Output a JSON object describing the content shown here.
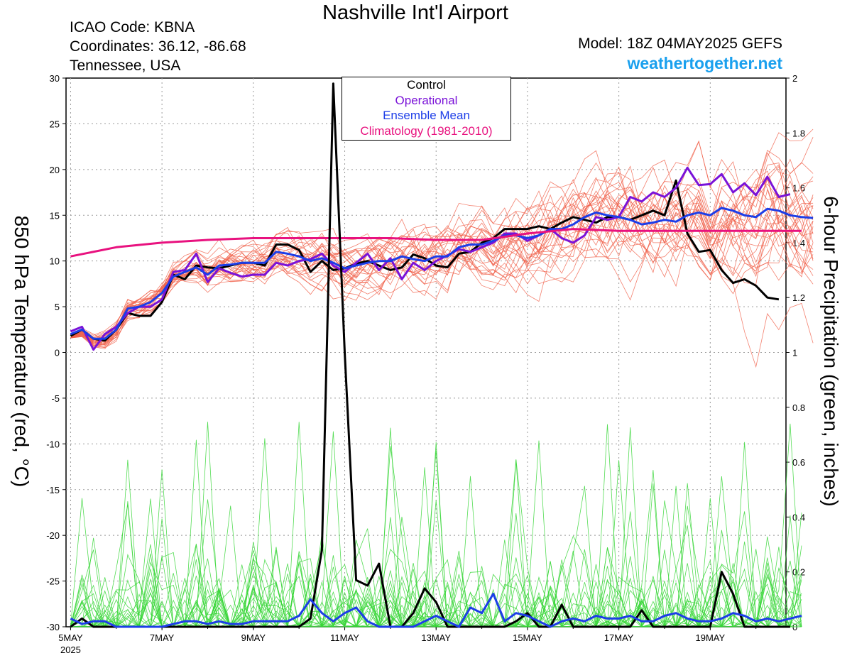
{
  "header": {
    "title": "Nashville Int'l Airport",
    "icao": "ICAO Code: KBNA",
    "coords": "Coordinates: 36.12, -86.68",
    "region": "Tennessee, USA",
    "model": "Model: 18Z 04MAY2025 GEFS",
    "site": "weathertogether.net"
  },
  "chart_data": {
    "type": "line",
    "title": "Nashville Int'l Airport",
    "ylabel_left": "850 hPa Temperature (red, °C)",
    "ylabel_right": "6-hour Precipitation (green, inches)",
    "ylim_left": [
      -30,
      30
    ],
    "ylim_right": [
      0,
      2
    ],
    "yticks_left": [
      "30",
      "25",
      "20",
      "15",
      "10",
      "5",
      "0",
      "-5",
      "-10",
      "-15",
      "-20",
      "-25",
      "-30"
    ],
    "yticks_right": [
      "2",
      "1.8",
      "1.6",
      "1.4",
      "1.2",
      "1",
      "0.8",
      "0.6",
      "0.4",
      "0.2",
      "0"
    ],
    "xticks": [
      {
        "label": "5MAY",
        "day": 5
      },
      {
        "label": "7MAY",
        "day": 7
      },
      {
        "label": "9MAY",
        "day": 9
      },
      {
        "label": "11MAY",
        "day": 11
      },
      {
        "label": "13MAY",
        "day": 13
      },
      {
        "label": "15MAY",
        "day": 15
      },
      {
        "label": "17MAY",
        "day": 17
      },
      {
        "label": "19MAY",
        "day": 19
      }
    ],
    "x_year_label": "2025",
    "grid": true,
    "legend": [
      {
        "label": "Control",
        "color": "#000000"
      },
      {
        "label": "Operational",
        "color": "#7a12d8"
      },
      {
        "label": "Ensemble Mean",
        "color": "#1c3de8"
      },
      {
        "label": "Climatology (1981-2010)",
        "color": "#e8127f"
      }
    ],
    "legend_position": "top-center",
    "x_start_day": 5.0,
    "x_step_days": 0.25,
    "series": [
      {
        "name": "Control",
        "axis": "temperature",
        "color": "#000000",
        "values": [
          1.8,
          2.5,
          1.5,
          1.3,
          2.5,
          4.3,
          4.0,
          4.0,
          5.5,
          8.5,
          8.0,
          9.5,
          9.3,
          9.2,
          9.5,
          9.8,
          9.8,
          9.5,
          11.8,
          11.8,
          11.2,
          8.8,
          10.0,
          9.0,
          9.2,
          9.7,
          10.0,
          9.5,
          9.0,
          9.3,
          10.7,
          10.3,
          9.5,
          9.3,
          10.8,
          11.0,
          12.0,
          12.5,
          13.5,
          13.5,
          13.5,
          13.8,
          13.5,
          14.2,
          14.8,
          14.5,
          14.2,
          14.8,
          14.8,
          14.5,
          15.0,
          15.5,
          15.0,
          18.8,
          13.0,
          11.0,
          11.2,
          9.0,
          7.6,
          8.0,
          7.3,
          6.0,
          5.8
        ]
      },
      {
        "name": "Operational",
        "axis": "temperature",
        "color": "#7a12d8",
        "values": [
          2.3,
          2.8,
          0.3,
          2.0,
          2.8,
          4.3,
          5.0,
          5.0,
          5.8,
          8.8,
          9.0,
          10.8,
          7.7,
          9.2,
          8.7,
          8.3,
          8.5,
          8.5,
          9.8,
          9.5,
          10.0,
          10.2,
          10.8,
          9.5,
          8.8,
          9.8,
          10.8,
          9.0,
          10.3,
          8.0,
          9.8,
          9.0,
          10.0,
          10.6,
          11.3,
          11.0,
          11.5,
          12.0,
          13.0,
          13.0,
          12.2,
          12.8,
          13.5,
          12.5,
          12.0,
          12.8,
          14.8,
          14.5,
          14.8,
          17.0,
          16.5,
          17.5,
          17.0,
          18.0,
          20.2,
          18.3,
          18.4,
          19.5,
          17.5,
          18.5,
          17.2,
          19.2,
          17.0,
          17.3
        ]
      },
      {
        "name": "Ensemble Mean",
        "axis": "temperature",
        "color": "#1c3de8",
        "values": [
          2.0,
          2.5,
          1.5,
          1.5,
          2.5,
          4.8,
          5.0,
          5.5,
          6.5,
          8.3,
          8.8,
          9.3,
          8.5,
          9.5,
          9.6,
          9.8,
          9.8,
          9.8,
          11.0,
          10.8,
          10.5,
          10.0,
          10.3,
          9.8,
          9.2,
          9.5,
          9.8,
          10.0,
          10.0,
          10.5,
          10.2,
          10.0,
          10.5,
          10.5,
          11.5,
          11.8,
          11.8,
          12.2,
          12.8,
          12.8,
          12.5,
          12.8,
          13.5,
          13.5,
          14.0,
          14.8,
          15.3,
          15.0,
          14.8,
          14.5,
          14.0,
          14.2,
          14.5,
          14.3,
          15.0,
          15.3,
          15.0,
          15.8,
          15.5,
          15.0,
          14.8,
          15.7,
          15.5,
          15.0,
          14.8,
          14.7
        ]
      },
      {
        "name": "Climatology (1981-2010)",
        "axis": "temperature",
        "color": "#e8127f",
        "x_step_days": 1.0,
        "values": [
          10.5,
          11.5,
          12.0,
          12.3,
          12.5,
          12.5,
          12.5,
          12.5,
          12.3,
          12.3,
          13.0,
          13.5,
          13.3,
          13.3,
          13.3,
          13.3,
          13.3
        ]
      },
      {
        "name": "Control",
        "axis": "precipitation",
        "color": "#000000",
        "values": [
          0.0,
          0.03,
          0.0,
          0.0,
          0.0,
          0.0,
          0.0,
          0.0,
          0.0,
          0.0,
          0.0,
          0.0,
          0.0,
          0.0,
          0.0,
          0.0,
          0.0,
          0.0,
          0.0,
          0.0,
          0.0,
          0.03,
          0.28,
          1.98,
          1.0,
          0.17,
          0.15,
          0.23,
          0.0,
          0.0,
          0.05,
          0.14,
          0.09,
          0.0,
          0.0,
          0.0,
          0.0,
          0.0,
          0.0,
          0.02,
          0.05,
          0.0,
          0.0,
          0.08,
          0.0,
          0.0,
          0.0,
          0.0,
          0.0,
          0.0,
          0.06,
          0.0,
          0.0,
          0.0,
          0.0,
          0.0,
          0.0,
          0.2,
          0.12,
          0.0,
          0.0,
          0.0,
          0.0,
          0.0
        ]
      },
      {
        "name": "Ensemble Mean",
        "axis": "precipitation",
        "color": "#1c3de8",
        "values": [
          0.03,
          0.01,
          0.02,
          0.02,
          0.0,
          0.0,
          0.0,
          0.0,
          0.0,
          0.01,
          0.02,
          0.02,
          0.01,
          0.02,
          0.01,
          0.01,
          0.02,
          0.02,
          0.02,
          0.02,
          0.04,
          0.1,
          0.05,
          0.02,
          0.05,
          0.07,
          0.02,
          0.0,
          0.0,
          0.0,
          0.0,
          0.02,
          0.04,
          0.02,
          0.0,
          0.07,
          0.05,
          0.12,
          0.02,
          0.05,
          0.04,
          0.02,
          0.0,
          0.02,
          0.03,
          0.02,
          0.04,
          0.03,
          0.03,
          0.04,
          0.02,
          0.02,
          0.04,
          0.05,
          0.03,
          0.02,
          0.02,
          0.03,
          0.05,
          0.04,
          0.02,
          0.03,
          0.02,
          0.03,
          0.04
        ]
      }
    ]
  }
}
